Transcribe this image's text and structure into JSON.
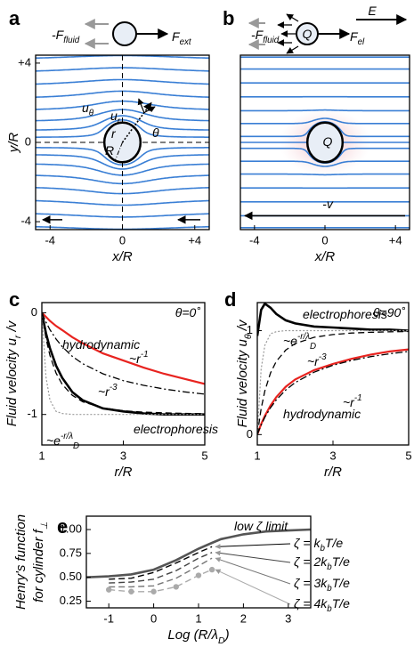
{
  "chart_data": [
    {
      "type": "flow",
      "panel": "a",
      "xlabel": [
        "x/R"
      ],
      "ylabel": [
        [
          "y/R"
        ]
      ],
      "xlim": [
        -4.8,
        4.8
      ],
      "ylim": [
        -4.4,
        4.4
      ],
      "xticks": [
        -4,
        0,
        {
          "value": 4,
          "label": "+4"
        }
      ],
      "yticks": [
        -4,
        0,
        {
          "value": 4,
          "label": "+4"
        }
      ],
      "center_lines": true,
      "annotations": [
        {
          "parts": [
            "-F",
            {
              "sub": "fluid"
            }
          ]
        },
        {
          "parts": [
            "F",
            {
              "sub": "ext"
            }
          ]
        },
        {
          "parts": [
            "u",
            {
              "sub": "θ"
            }
          ]
        },
        {
          "parts": [
            "u",
            {
              "sub": "r"
            }
          ]
        },
        {
          "parts": [
            "r"
          ]
        },
        {
          "parts": [
            "θ"
          ]
        },
        {
          "parts": [
            "R"
          ]
        }
      ]
    },
    {
      "type": "flow",
      "panel": "b",
      "xlabel": [
        "x/R"
      ],
      "xlim": [
        -4.8,
        4.8
      ],
      "ylim": [
        -4.4,
        4.4
      ],
      "xticks": [
        -4,
        0,
        {
          "value": 4,
          "label": "+4"
        }
      ],
      "center_lines": false,
      "annotations": [
        {
          "parts": [
            "-F",
            {
              "sub": "fluid"
            }
          ]
        },
        {
          "parts": [
            "Q"
          ]
        },
        {
          "parts": [
            "F",
            {
              "sub": "el"
            }
          ]
        },
        {
          "parts": [
            "E"
          ]
        },
        {
          "parts": [
            "Q"
          ]
        },
        {
          "parts": [
            "-v"
          ]
        }
      ]
    },
    {
      "type": "line",
      "panel": "c",
      "xlabel": [
        "r/R"
      ],
      "ylabel": [
        [
          "Fluid velocity u",
          {
            "sub": "r"
          },
          " /v"
        ]
      ],
      "xlim": [
        1,
        5
      ],
      "ylim": [
        -1.3,
        0.1
      ],
      "xticks": [
        1,
        3,
        5
      ],
      "yticks": [
        -1,
        0
      ],
      "annotations": [
        {
          "parts": [
            "θ=0˚"
          ]
        }
      ],
      "x": [
        1,
        1.1,
        1.2,
        1.35,
        1.5,
        1.75,
        2,
        2.5,
        3,
        3.5,
        4,
        4.5,
        5
      ],
      "series": [
        {
          "label": [
            "hydrodynamic"
          ],
          "color": "#e8231f",
          "style": "solid",
          "linewidth": 2.2,
          "values": [
            0,
            -0.04,
            -0.08,
            -0.13,
            -0.17,
            -0.24,
            -0.3,
            -0.4,
            -0.47,
            -0.54,
            -0.6,
            -0.65,
            -0.7
          ]
        },
        {
          "label": [
            "electrophoresis"
          ],
          "color": "#000000",
          "style": "solid",
          "linewidth": 2.6,
          "values": [
            0,
            -0.2,
            -0.35,
            -0.52,
            -0.64,
            -0.78,
            -0.86,
            -0.94,
            -0.97,
            -0.99,
            -1,
            -1,
            -1
          ]
        },
        {
          "label": [
            "~r",
            {
              "sup": "-1"
            }
          ],
          "color": "#000000",
          "style": "dashdot",
          "linewidth": 1.3,
          "values": [
            0,
            -0.091,
            -0.167,
            -0.259,
            -0.333,
            -0.429,
            -0.5,
            -0.6,
            -0.667,
            -0.714,
            -0.75,
            -0.778,
            -0.8
          ]
        },
        {
          "label": [
            "~r",
            {
              "sup": "-3"
            }
          ],
          "color": "#000000",
          "style": "dashed",
          "linewidth": 1.3,
          "values": [
            0,
            -0.249,
            -0.421,
            -0.594,
            -0.704,
            -0.813,
            -0.875,
            -0.936,
            -0.963,
            -0.977,
            -0.984,
            -0.989,
            -0.992
          ]
        },
        {
          "label": [
            "~e",
            {
              "sup": "-r/λ"
            },
            {
              "sub": "D"
            }
          ],
          "color": "#999999",
          "style": "dotted",
          "linewidth": 1.2,
          "values": [
            0,
            -0.63,
            -0.86,
            -0.97,
            -0.99,
            -1,
            -1,
            -1,
            -1,
            -1,
            -1,
            -1,
            -1
          ]
        }
      ]
    },
    {
      "type": "line",
      "panel": "d",
      "xlabel": [
        "r/R"
      ],
      "ylabel": [
        [
          "Fluid velocity u",
          {
            "sub": "θ"
          },
          " /v"
        ]
      ],
      "xlim": [
        1,
        5
      ],
      "ylim": [
        -0.1,
        1.27
      ],
      "xticks": [
        1,
        3,
        5
      ],
      "yticks": [
        0,
        1
      ],
      "annotations": [
        {
          "parts": [
            "θ=90˚"
          ]
        }
      ],
      "x": [
        1,
        1.1,
        1.2,
        1.35,
        1.5,
        1.75,
        2,
        2.5,
        3,
        3.5,
        4,
        4.5,
        5
      ],
      "series": [
        {
          "label": [
            "electrophoresis"
          ],
          "color": "#000000",
          "style": "solid",
          "linewidth": 2.6,
          "values": [
            0.95,
            1.2,
            1.26,
            1.22,
            1.16,
            1.1,
            1.07,
            1.04,
            1.03,
            1.02,
            1.01,
            1.01,
            1
          ]
        },
        {
          "label": [
            "hydrodynamic"
          ],
          "color": "#e8231f",
          "style": "solid",
          "linewidth": 2.2,
          "values": [
            0,
            0.1,
            0.18,
            0.28,
            0.36,
            0.46,
            0.53,
            0.62,
            0.68,
            0.73,
            0.77,
            0.8,
            0.82
          ]
        },
        {
          "label": [
            "~r",
            {
              "sup": "-1"
            }
          ],
          "color": "#000000",
          "style": "dashdot",
          "linewidth": 1.3,
          "values": [
            0,
            0.091,
            0.167,
            0.259,
            0.333,
            0.429,
            0.5,
            0.6,
            0.667,
            0.714,
            0.75,
            0.778,
            0.8
          ]
        },
        {
          "label": [
            "~r",
            {
              "sup": "-3"
            }
          ],
          "color": "#000000",
          "style": "dashed",
          "linewidth": 1.3,
          "values": [
            0,
            0.249,
            0.421,
            0.594,
            0.704,
            0.813,
            0.875,
            0.936,
            0.963,
            0.977,
            0.984,
            0.989,
            0.992
          ]
        },
        {
          "label": [
            "~e",
            {
              "sup": "-r/λ"
            },
            {
              "sub": "D"
            }
          ],
          "color": "#999999",
          "style": "dotted",
          "linewidth": 1.2,
          "values": [
            0,
            0.63,
            0.86,
            0.97,
            0.99,
            1,
            1,
            1,
            1,
            1,
            1,
            1,
            1
          ]
        }
      ]
    },
    {
      "type": "line",
      "panel": "e",
      "xlabel": [
        "Log (R/λ",
        {
          "sub": "D"
        },
        ")"
      ],
      "ylabel": [
        [
          "Henry's function"
        ],
        [
          "for cylinder f",
          {
            "sub": "⊥"
          }
        ]
      ],
      "xlim": [
        -1.5,
        3.5
      ],
      "ylim": [
        0.18,
        1.14
      ],
      "xticks": [
        -1,
        0,
        1,
        2,
        3
      ],
      "yticks": [
        {
          "value": 0.25,
          "label": "0.25"
        },
        {
          "value": 0.5,
          "label": "0.50"
        },
        {
          "value": 0.75,
          "label": "0.75"
        },
        {
          "value": 1,
          "label": "1.00"
        }
      ],
      "x": [
        -1.5,
        -1,
        -0.5,
        0,
        0.5,
        1,
        1.3,
        1.5,
        2,
        2.5,
        3,
        3.5
      ],
      "series": [
        {
          "label": [
            "low ζ limit"
          ],
          "color": "#555555",
          "style": "solid",
          "linewidth": 2.6,
          "values": [
            0.5,
            0.51,
            0.53,
            0.58,
            0.68,
            0.8,
            0.86,
            0.9,
            0.95,
            0.98,
            0.99,
            1
          ]
        },
        {
          "label": [
            "ζ = k",
            {
              "sub": "b"
            },
            "T/e"
          ],
          "color": "#000000",
          "style": "dashed",
          "linewidth": 1.4,
          "values": [
            null,
            0.48,
            0.49,
            0.55,
            0.65,
            0.76,
            0.82,
            null,
            null,
            null,
            null,
            null
          ]
        },
        {
          "label": [
            "ζ = 2k",
            {
              "sub": "b"
            },
            "T/e"
          ],
          "color": "#444444",
          "style": "dashed",
          "linewidth": 1.4,
          "values": [
            null,
            0.44,
            0.45,
            0.48,
            0.57,
            0.7,
            0.76,
            null,
            null,
            null,
            null,
            null
          ]
        },
        {
          "label": [
            "ζ = 3k",
            {
              "sub": "b"
            },
            "T/e"
          ],
          "color": "#777777",
          "style": "dashed",
          "linewidth": 1.4,
          "values": [
            null,
            0.4,
            0.4,
            0.41,
            0.49,
            0.62,
            0.7,
            null,
            null,
            null,
            null,
            null
          ]
        },
        {
          "label": [
            "ζ = 4k",
            {
              "sub": "b"
            },
            "T/e"
          ],
          "color": "#aaaaaa",
          "style": "dashed",
          "marker": "circle",
          "linewidth": 1.4,
          "values": [
            null,
            0.37,
            0.35,
            0.35,
            0.4,
            0.52,
            0.58,
            null,
            null,
            null,
            null,
            null
          ]
        }
      ]
    }
  ]
}
